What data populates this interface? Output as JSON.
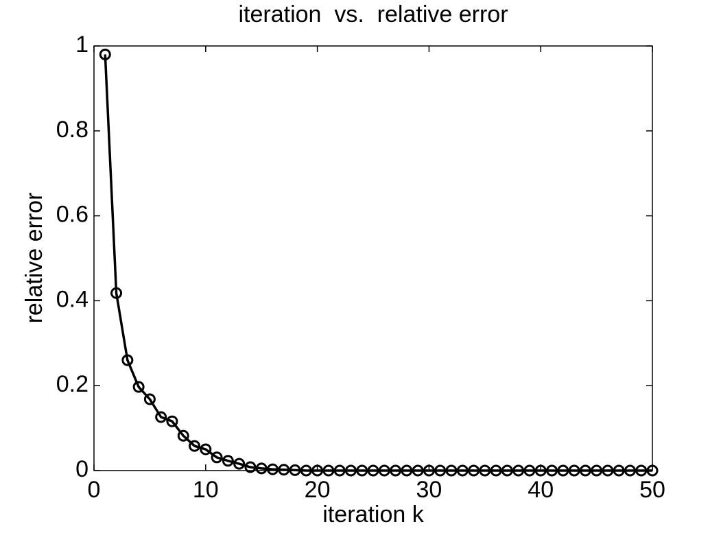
{
  "chart_data": {
    "type": "line",
    "title": "iteration  vs.  relative error",
    "x_label": "iteration k",
    "y_label": "relative error",
    "x": [
      1,
      2,
      3,
      4,
      5,
      6,
      7,
      8,
      9,
      10,
      11,
      12,
      13,
      14,
      15,
      16,
      17,
      18,
      19,
      20,
      21,
      22,
      23,
      24,
      25,
      26,
      27,
      28,
      29,
      30,
      31,
      32,
      33,
      34,
      35,
      36,
      37,
      38,
      39,
      40,
      41,
      42,
      43,
      44,
      45,
      46,
      47,
      48,
      49,
      50
    ],
    "values": [
      0.98,
      0.418,
      0.26,
      0.197,
      0.168,
      0.126,
      0.116,
      0.082,
      0.058,
      0.05,
      0.031,
      0.023,
      0.016,
      0.008,
      0.005,
      0.003,
      0.002,
      0.001,
      0,
      0,
      0,
      0,
      0,
      0,
      0,
      0,
      0,
      0,
      0,
      0,
      0,
      0,
      0,
      0,
      0,
      0,
      0,
      0,
      0,
      0,
      0,
      0,
      0,
      0,
      0,
      0,
      0,
      0,
      0,
      0
    ],
    "color": "#000000",
    "marker": "circle",
    "xlim": [
      0,
      50
    ],
    "xticks": [
      0,
      10,
      20,
      30,
      40,
      50
    ],
    "ylim": [
      0,
      1
    ],
    "yticks": [
      0,
      0.2,
      0.4,
      0.6,
      0.8,
      1
    ],
    "grid": false
  }
}
